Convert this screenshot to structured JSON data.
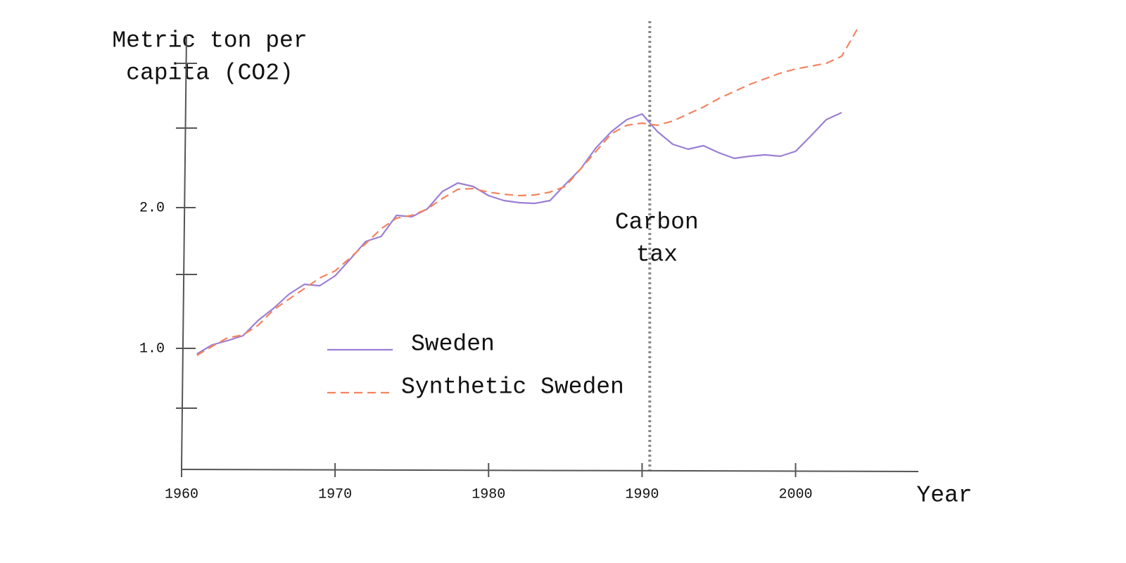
{
  "chart_data": {
    "type": "line",
    "y_label": [
      "Metric ton per",
      "capita (CO2)"
    ],
    "x_label": "Year",
    "x": [
      1961,
      1962,
      1963,
      1964,
      1965,
      1966,
      1967,
      1968,
      1969,
      1970,
      1971,
      1972,
      1973,
      1974,
      1975,
      1976,
      1977,
      1978,
      1979,
      1980,
      1981,
      1982,
      1983,
      1984,
      1985,
      1986,
      1987,
      1988,
      1989,
      1990,
      1991,
      1992,
      1993,
      1994,
      1995,
      1996,
      1997,
      1998,
      1999,
      2000,
      2001,
      2002,
      2003,
      2004
    ],
    "series": [
      {
        "name": "Sweden",
        "color": "#9b7fd4",
        "dash": false,
        "values": [
          0.96,
          1.025,
          1.055,
          1.09,
          1.2,
          1.285,
          1.385,
          1.455,
          1.445,
          1.515,
          1.635,
          1.76,
          1.795,
          1.945,
          1.935,
          1.99,
          2.115,
          2.175,
          2.15,
          2.085,
          2.05,
          2.035,
          2.03,
          2.05,
          2.165,
          2.275,
          2.425,
          2.54,
          2.625,
          2.665,
          2.54,
          2.45,
          2.415,
          2.44,
          2.39,
          2.35,
          2.365,
          2.375,
          2.365,
          2.4,
          2.51,
          2.625,
          2.675,
          null
        ]
      },
      {
        "name": "Synthetic Sweden",
        "color": "#f4845f",
        "dash": true,
        "values": [
          0.95,
          1.015,
          1.075,
          1.095,
          1.165,
          1.275,
          1.35,
          1.425,
          1.5,
          1.55,
          1.645,
          1.745,
          1.85,
          1.925,
          1.945,
          1.99,
          2.065,
          2.13,
          2.135,
          2.11,
          2.095,
          2.085,
          2.09,
          2.11,
          2.15,
          2.275,
          2.4,
          2.525,
          2.585,
          2.6,
          2.585,
          2.615,
          2.665,
          2.715,
          2.775,
          2.825,
          2.875,
          2.915,
          2.955,
          2.985,
          3.005,
          3.025,
          3.075,
          3.265
        ]
      }
    ],
    "xlim": [
      1960,
      2008
    ],
    "xticks": [
      1960,
      1970,
      1980,
      1990,
      2000
    ],
    "ylim": [
      0.15,
      3.35
    ],
    "yticks": [
      {
        "value": 1,
        "label": "1.0"
      },
      {
        "value": 2,
        "label": "2.0"
      }
    ],
    "minor_yticks": [
      0.575,
      1.525,
      2.565,
      3.025
    ],
    "annotations": [
      {
        "text": [
          "Carbon",
          "tax"
        ],
        "x": 1990.5
      }
    ],
    "legend": "lower center",
    "grid": false
  }
}
